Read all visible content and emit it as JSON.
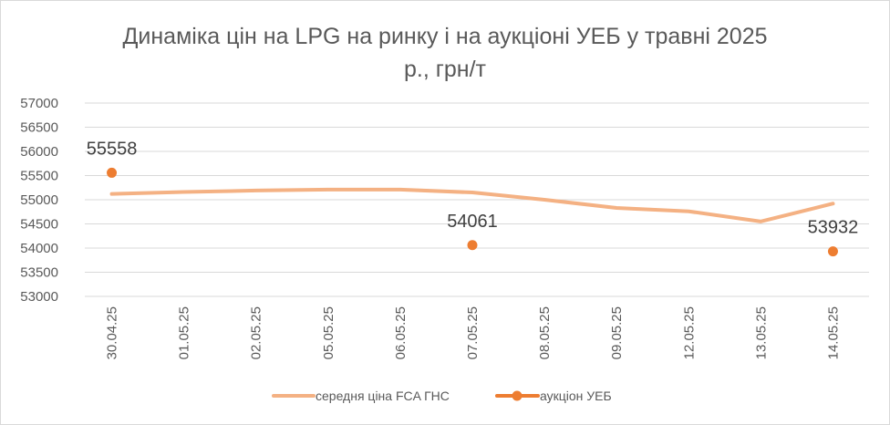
{
  "chart_data": {
    "type": "line",
    "title": "Динаміка цін на LPG на ринку і на аукціоні УЕБ у травні 2025 р., грн/т",
    "title_lines": [
      "Динаміка цін на LPG на ринку і на аукціоні УЕБ у травні 2025",
      "р., грн/т"
    ],
    "xlabel": "",
    "ylabel": "",
    "ylim": [
      53000,
      57000
    ],
    "yticks": [
      "53000",
      "53500",
      "54000",
      "54500",
      "55000",
      "55500",
      "56000",
      "56500",
      "57000"
    ],
    "categories": [
      "30.04.25",
      "01.05.25",
      "02.05.25",
      "05.05.25",
      "06.05.25",
      "07.05.25",
      "08.05.25",
      "09.05.25",
      "12.05.25",
      "13.05.25",
      "14.05.25"
    ],
    "grid": true,
    "legend_position": "bottom",
    "series": [
      {
        "name": "середня ціна FCA ГНС",
        "color": "#f4b183",
        "style": "line",
        "values": [
          55120,
          55160,
          55190,
          55210,
          55210,
          55150,
          55000,
          54830,
          54760,
          54550,
          54920
        ]
      },
      {
        "name": "аукціон УЕБ",
        "color": "#ed7d31",
        "style": "markers",
        "values": [
          55558,
          null,
          null,
          null,
          null,
          54061,
          null,
          null,
          null,
          null,
          53932
        ],
        "labels": [
          "55558",
          null,
          null,
          null,
          null,
          "54061",
          null,
          null,
          null,
          null,
          "53932"
        ]
      }
    ]
  }
}
